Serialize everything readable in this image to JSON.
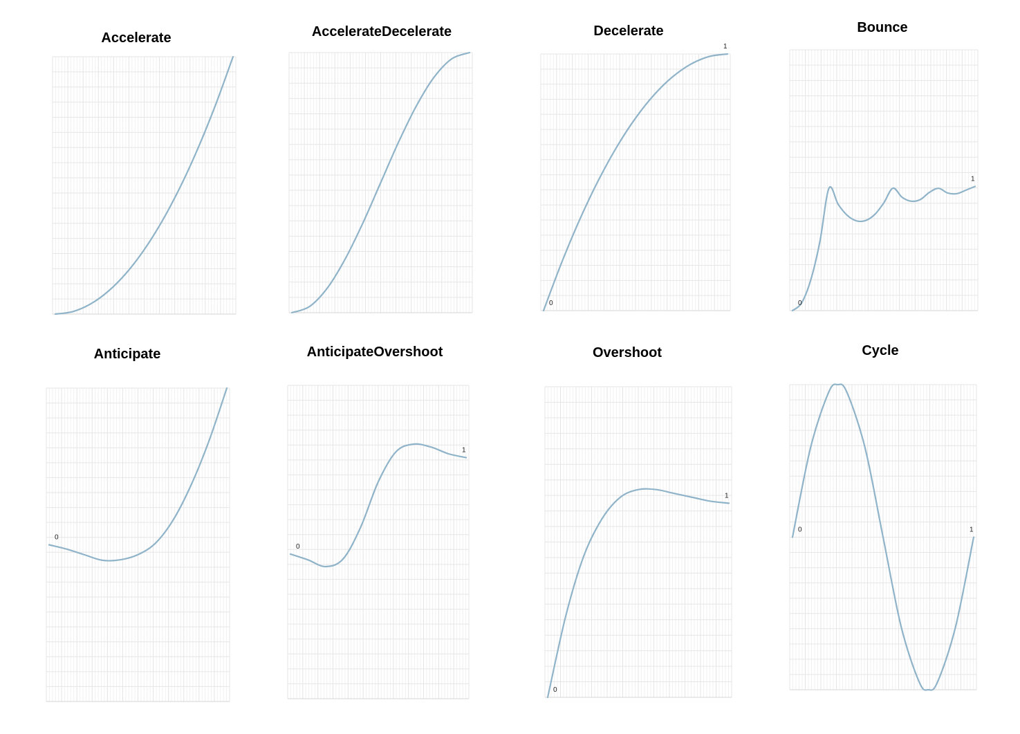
{
  "chart_data": [
    {
      "type": "line",
      "title": "Accelerate",
      "xlim": [
        0,
        1
      ],
      "ylim": [
        0,
        1
      ],
      "x": [
        0,
        0.1,
        0.2,
        0.3,
        0.4,
        0.5,
        0.6,
        0.7,
        0.8,
        0.9,
        1
      ],
      "y": [
        0,
        0.01,
        0.04,
        0.09,
        0.16,
        0.25,
        0.36,
        0.49,
        0.64,
        0.81,
        1
      ],
      "start_label": "",
      "end_label": ""
    },
    {
      "type": "line",
      "title": "AccelerateDecelerate",
      "xlim": [
        0,
        1
      ],
      "ylim": [
        0,
        1
      ],
      "x": [
        0,
        0.1,
        0.2,
        0.3,
        0.4,
        0.5,
        0.6,
        0.7,
        0.8,
        0.9,
        1
      ],
      "y": [
        0,
        0.024,
        0.095,
        0.206,
        0.345,
        0.5,
        0.655,
        0.794,
        0.905,
        0.976,
        1
      ],
      "start_label": "",
      "end_label": ""
    },
    {
      "type": "line",
      "title": "Decelerate",
      "xlim": [
        0,
        1
      ],
      "ylim": [
        0,
        1
      ],
      "x": [
        0,
        0.1,
        0.2,
        0.3,
        0.4,
        0.5,
        0.6,
        0.7,
        0.8,
        0.9,
        1
      ],
      "y": [
        0,
        0.19,
        0.36,
        0.51,
        0.64,
        0.75,
        0.84,
        0.91,
        0.96,
        0.99,
        1
      ],
      "start_label": "0",
      "end_label": "1"
    },
    {
      "type": "line",
      "title": "Bounce",
      "xlim": [
        0,
        1
      ],
      "ylim": [
        0,
        2.1
      ],
      "x": [
        0,
        0.05,
        0.1,
        0.15,
        0.2,
        0.25,
        0.3,
        0.35,
        0.4,
        0.45,
        0.5,
        0.55,
        0.6,
        0.65,
        0.7,
        0.75,
        0.8,
        0.85,
        0.9,
        0.95,
        1
      ],
      "y": [
        0,
        0.062,
        0.247,
        0.555,
        0.986,
        0.856,
        0.767,
        0.723,
        0.725,
        0.773,
        0.867,
        0.986,
        0.913,
        0.881,
        0.894,
        0.952,
        0.985,
        0.947,
        0.942,
        0.97,
        1
      ],
      "start_label": "0",
      "end_label": "1"
    },
    {
      "type": "line",
      "title": "Anticipate",
      "xlim": [
        0,
        1
      ],
      "ylim": [
        -1,
        1
      ],
      "x": [
        0,
        0.1,
        0.2,
        0.3,
        0.4,
        0.5,
        0.6,
        0.7,
        0.8,
        0.9,
        1
      ],
      "y": [
        0,
        -0.028,
        -0.064,
        -0.099,
        -0.096,
        -0.063,
        0.012,
        0.162,
        0.384,
        0.664,
        1
      ],
      "start_label": "0",
      "end_label": ""
    },
    {
      "type": "line",
      "title": "AnticipateOvershoot",
      "xlim": [
        0,
        1
      ],
      "ylim": [
        -1.5,
        1.75
      ],
      "x": [
        0,
        0.1,
        0.2,
        0.3,
        0.4,
        0.5,
        0.6,
        0.7,
        0.8,
        0.9,
        1
      ],
      "y": [
        0,
        -0.06,
        -0.13,
        -0.05,
        0.28,
        0.75,
        1.06,
        1.14,
        1.11,
        1.04,
        1
      ],
      "start_label": "0",
      "end_label": "1"
    },
    {
      "type": "line",
      "title": "Overshoot",
      "xlim": [
        0,
        1
      ],
      "ylim": [
        0,
        1.6
      ],
      "x": [
        0,
        0.1,
        0.2,
        0.3,
        0.4,
        0.5,
        0.6,
        0.7,
        0.8,
        0.9,
        1
      ],
      "y": [
        0,
        0.42,
        0.73,
        0.92,
        1.03,
        1.07,
        1.07,
        1.05,
        1.03,
        1.01,
        1
      ],
      "start_label": "0",
      "end_label": "1"
    },
    {
      "type": "line",
      "title": "Cycle",
      "xlim": [
        0,
        1
      ],
      "ylim": [
        -1,
        1
      ],
      "x": [
        0,
        0.1,
        0.2,
        0.25,
        0.3,
        0.4,
        0.5,
        0.6,
        0.7,
        0.75,
        0.8,
        0.9,
        1
      ],
      "y": [
        0,
        0.588,
        0.951,
        1,
        0.951,
        0.588,
        0,
        -0.588,
        -0.951,
        -1,
        -0.951,
        -0.588,
        0
      ],
      "start_label": "0",
      "end_label": "1"
    }
  ]
}
